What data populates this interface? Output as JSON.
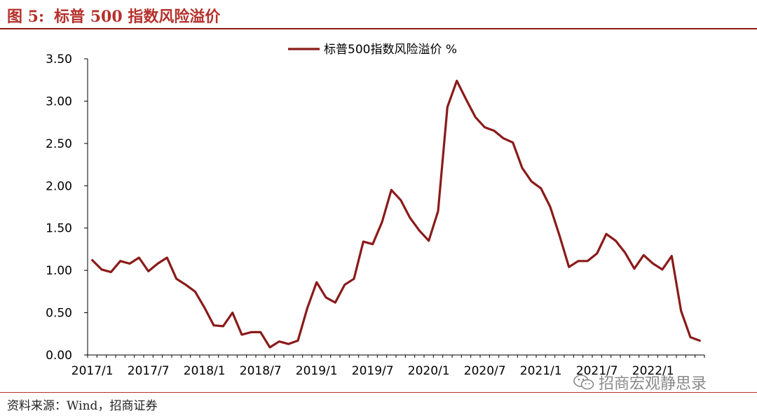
{
  "figure": {
    "title_label": "图 5:",
    "title_text": "标普 500 指数风险溢价",
    "source": "资料来源：Wind，招商证券",
    "watermark": "招商宏观静思录",
    "watermark_icon": "wechat-icon"
  },
  "chart_data": {
    "type": "line",
    "title": "",
    "xlabel": "",
    "ylabel": "",
    "ylim": [
      0,
      3.5
    ],
    "yticks": [
      "0.00",
      "0.50",
      "1.00",
      "1.50",
      "2.00",
      "2.50",
      "3.00",
      "3.50"
    ],
    "xticks": [
      "2017/1",
      "2017/7",
      "2018/1",
      "2018/7",
      "2019/1",
      "2019/7",
      "2020/1",
      "2020/7",
      "2021/1",
      "2021/7",
      "2022/1"
    ],
    "grid": false,
    "legend": "top-center",
    "line_color": "#8b1a1a",
    "series": [
      {
        "name": "标普500指数风险溢价 %",
        "x": [
          "2017/1",
          "2017/2",
          "2017/3",
          "2017/4",
          "2017/5",
          "2017/6",
          "2017/7",
          "2017/8",
          "2017/9",
          "2017/10",
          "2017/11",
          "2017/12",
          "2018/1",
          "2018/2",
          "2018/3",
          "2018/4",
          "2018/5",
          "2018/6",
          "2018/7",
          "2018/8",
          "2018/9",
          "2018/10",
          "2018/11",
          "2018/12",
          "2019/1",
          "2019/2",
          "2019/3",
          "2019/4",
          "2019/5",
          "2019/6",
          "2019/7",
          "2019/8",
          "2019/9",
          "2019/10",
          "2019/11",
          "2019/12",
          "2020/1",
          "2020/2",
          "2020/3",
          "2020/4",
          "2020/5",
          "2020/6",
          "2020/7",
          "2020/8",
          "2020/9",
          "2020/10",
          "2020/11",
          "2020/12",
          "2021/1",
          "2021/2",
          "2021/3",
          "2021/4",
          "2021/5",
          "2021/6",
          "2021/7",
          "2021/8",
          "2021/9",
          "2021/10",
          "2021/11",
          "2021/12",
          "2022/1",
          "2022/2",
          "2022/3",
          "2022/4",
          "2022/5",
          "2022/6"
        ],
        "values": [
          1.12,
          1.01,
          0.98,
          1.11,
          1.08,
          1.15,
          0.99,
          1.08,
          1.15,
          0.9,
          0.83,
          0.75,
          0.56,
          0.35,
          0.34,
          0.5,
          0.24,
          0.27,
          0.27,
          0.09,
          0.16,
          0.13,
          0.17,
          0.55,
          0.86,
          0.68,
          0.62,
          0.83,
          0.9,
          1.34,
          1.31,
          1.57,
          1.95,
          1.83,
          1.62,
          1.47,
          1.35,
          1.7,
          2.93,
          3.24,
          3.02,
          2.81,
          2.69,
          2.65,
          2.56,
          2.51,
          2.21,
          2.05,
          1.97,
          1.75,
          1.41,
          1.04,
          1.11,
          1.11,
          1.2,
          1.43,
          1.35,
          1.21,
          1.02,
          1.18,
          1.08,
          1.01,
          1.17,
          0.52,
          0.21,
          0.17
        ]
      }
    ]
  }
}
